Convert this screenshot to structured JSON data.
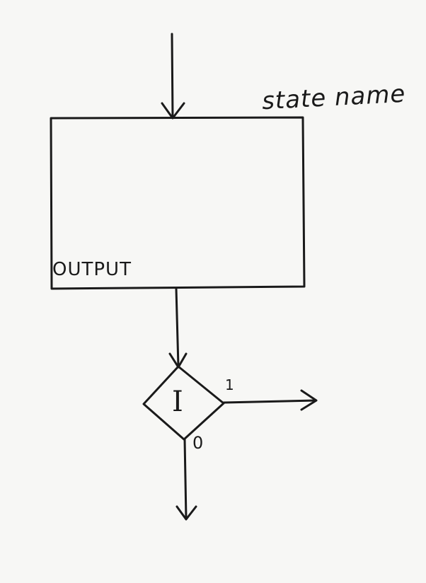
{
  "state": {
    "name": "state name",
    "output_label": "OUTPUT"
  },
  "decision": {
    "variable": "I",
    "true_branch": "1",
    "false_branch": "0"
  }
}
